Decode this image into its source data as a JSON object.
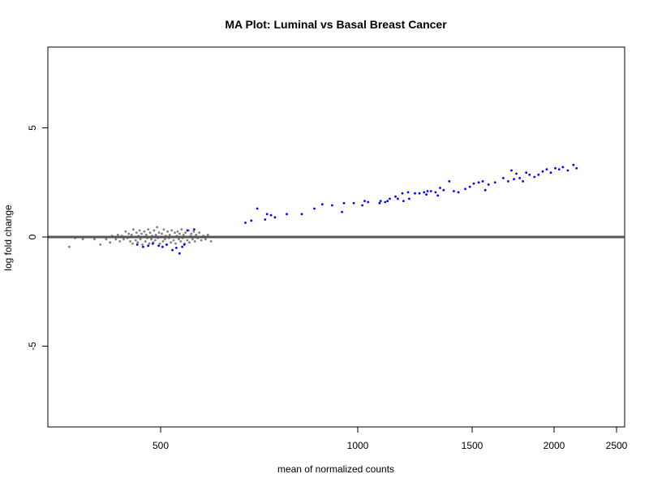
{
  "chart_data": {
    "type": "scatter",
    "title": "MA Plot: Luminal vs Basal Breast Cancer",
    "xlabel": "mean of normalized counts",
    "ylabel": "log fold change",
    "x_ticks": [
      500,
      1000,
      1500,
      2000,
      2500
    ],
    "y_ticks": [
      -5,
      0,
      5
    ],
    "xlim": [
      210,
      2530
    ],
    "ylim": [
      -8.7,
      8.7
    ],
    "reference_line_y": 0,
    "colors": {
      "nonsignificant": "#808080",
      "significant": "#0000ff",
      "reference_line": "#555555"
    },
    "series": [
      {
        "name": "",
        "color": "#808080",
        "points": [
          [
            265,
            -0.45
          ],
          [
            280,
            -0.05
          ],
          [
            300,
            -0.1
          ],
          [
            330,
            -0.1
          ],
          [
            345,
            -0.35
          ],
          [
            360,
            -0.1
          ],
          [
            370,
            -0.25
          ],
          [
            375,
            0.05
          ],
          [
            385,
            -0.1
          ],
          [
            390,
            0.1
          ],
          [
            395,
            -0.2
          ],
          [
            400,
            0.05
          ],
          [
            405,
            -0.1
          ],
          [
            410,
            0.25
          ],
          [
            415,
            -0.05
          ],
          [
            418,
            0.15
          ],
          [
            422,
            -0.2
          ],
          [
            425,
            0.1
          ],
          [
            428,
            -0.3
          ],
          [
            430,
            0.35
          ],
          [
            433,
            0.0
          ],
          [
            436,
            -0.15
          ],
          [
            438,
            0.2
          ],
          [
            441,
            -0.25
          ],
          [
            443,
            0.05
          ],
          [
            446,
            0.3
          ],
          [
            448,
            -0.1
          ],
          [
            451,
            0.15
          ],
          [
            453,
            -0.35
          ],
          [
            456,
            0.0
          ],
          [
            458,
            0.25
          ],
          [
            461,
            -0.2
          ],
          [
            463,
            0.1
          ],
          [
            466,
            -0.05
          ],
          [
            468,
            0.35
          ],
          [
            471,
            -0.3
          ],
          [
            473,
            0.2
          ],
          [
            476,
            -0.1
          ],
          [
            478,
            0.05
          ],
          [
            481,
            -0.25
          ],
          [
            483,
            0.3
          ],
          [
            486,
            -0.15
          ],
          [
            488,
            0.1
          ],
          [
            491,
            0.45
          ],
          [
            493,
            -0.05
          ],
          [
            496,
            0.2
          ],
          [
            498,
            -0.3
          ],
          [
            501,
            0.0
          ],
          [
            503,
            0.15
          ],
          [
            506,
            -0.2
          ],
          [
            508,
            0.35
          ],
          [
            511,
            -0.1
          ],
          [
            513,
            0.05
          ],
          [
            516,
            -0.35
          ],
          [
            518,
            0.25
          ],
          [
            521,
            -0.05
          ],
          [
            523,
            0.1
          ],
          [
            526,
            -0.25
          ],
          [
            528,
            0.3
          ],
          [
            531,
            0.0
          ],
          [
            533,
            -0.15
          ],
          [
            536,
            0.2
          ],
          [
            538,
            -0.3
          ],
          [
            541,
            0.05
          ],
          [
            543,
            0.25
          ],
          [
            546,
            -0.1
          ],
          [
            548,
            0.15
          ],
          [
            551,
            -0.2
          ],
          [
            553,
            0.35
          ],
          [
            556,
            -0.05
          ],
          [
            558,
            0.1
          ],
          [
            561,
            -0.3
          ],
          [
            563,
            0.2
          ],
          [
            566,
            0.0
          ],
          [
            568,
            -0.15
          ],
          [
            571,
            0.3
          ],
          [
            573,
            -0.25
          ],
          [
            576,
            0.05
          ],
          [
            578,
            0.15
          ],
          [
            581,
            -0.1
          ],
          [
            584,
            0.25
          ],
          [
            587,
            -0.2
          ],
          [
            590,
            0.1
          ],
          [
            594,
            -0.05
          ],
          [
            598,
            0.2
          ],
          [
            603,
            -0.15
          ],
          [
            608,
            0.05
          ],
          [
            614,
            -0.1
          ],
          [
            620,
            0.1
          ],
          [
            628,
            -0.2
          ],
          [
            640,
            0.0
          ]
        ]
      },
      {
        "name": "",
        "color": "#0000ff",
        "points": [
          [
            440,
            -0.35
          ],
          [
            455,
            -0.45
          ],
          [
            468,
            -0.4
          ],
          [
            480,
            -0.3
          ],
          [
            495,
            -0.4
          ],
          [
            505,
            -0.45
          ],
          [
            515,
            -0.35
          ],
          [
            530,
            -0.6
          ],
          [
            540,
            -0.5
          ],
          [
            548,
            -0.75
          ],
          [
            555,
            -0.45
          ],
          [
            560,
            -0.35
          ],
          [
            568,
            0.3
          ],
          [
            585,
            0.35
          ],
          [
            715,
            0.65
          ],
          [
            730,
            0.75
          ],
          [
            745,
            1.3
          ],
          [
            765,
            0.8
          ],
          [
            770,
            1.05
          ],
          [
            780,
            1.0
          ],
          [
            790,
            0.9
          ],
          [
            820,
            1.05
          ],
          [
            858,
            1.05
          ],
          [
            890,
            1.3
          ],
          [
            910,
            1.5
          ],
          [
            935,
            1.45
          ],
          [
            960,
            1.15
          ],
          [
            965,
            1.55
          ],
          [
            990,
            1.55
          ],
          [
            1020,
            1.45
          ],
          [
            1030,
            1.65
          ],
          [
            1045,
            1.6
          ],
          [
            1095,
            1.55
          ],
          [
            1100,
            1.65
          ],
          [
            1120,
            1.6
          ],
          [
            1130,
            1.65
          ],
          [
            1140,
            1.75
          ],
          [
            1165,
            1.85
          ],
          [
            1175,
            1.75
          ],
          [
            1195,
            2.0
          ],
          [
            1200,
            1.65
          ],
          [
            1220,
            2.05
          ],
          [
            1225,
            1.75
          ],
          [
            1250,
            2.0
          ],
          [
            1270,
            2.0
          ],
          [
            1290,
            2.05
          ],
          [
            1300,
            1.95
          ],
          [
            1305,
            2.1
          ],
          [
            1320,
            2.1
          ],
          [
            1340,
            2.05
          ],
          [
            1350,
            1.9
          ],
          [
            1360,
            2.25
          ],
          [
            1375,
            2.15
          ],
          [
            1400,
            2.55
          ],
          [
            1420,
            2.1
          ],
          [
            1440,
            2.05
          ],
          [
            1470,
            2.2
          ],
          [
            1490,
            2.3
          ],
          [
            1510,
            2.45
          ],
          [
            1540,
            2.5
          ],
          [
            1565,
            2.55
          ],
          [
            1580,
            2.15
          ],
          [
            1600,
            2.4
          ],
          [
            1640,
            2.5
          ],
          [
            1690,
            2.7
          ],
          [
            1720,
            2.55
          ],
          [
            1740,
            3.05
          ],
          [
            1755,
            2.65
          ],
          [
            1770,
            2.9
          ],
          [
            1790,
            2.7
          ],
          [
            1810,
            2.55
          ],
          [
            1830,
            2.95
          ],
          [
            1850,
            2.85
          ],
          [
            1880,
            2.75
          ],
          [
            1905,
            2.85
          ],
          [
            1930,
            3.0
          ],
          [
            1955,
            3.1
          ],
          [
            1980,
            2.95
          ],
          [
            2010,
            3.15
          ],
          [
            2040,
            3.1
          ],
          [
            2070,
            3.2
          ],
          [
            2110,
            3.05
          ],
          [
            2155,
            3.3
          ],
          [
            2180,
            3.15
          ]
        ]
      }
    ]
  }
}
